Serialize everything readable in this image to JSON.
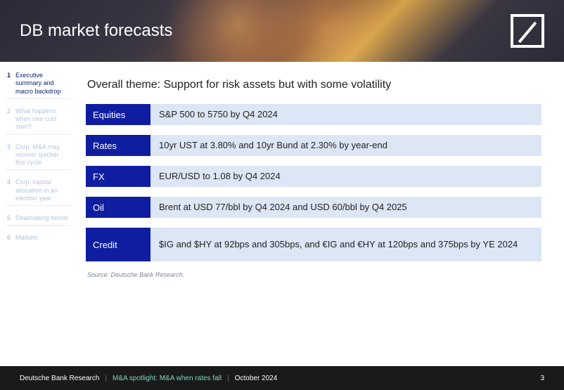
{
  "header": {
    "title": "DB market forecasts",
    "logo_color": "#ffffff"
  },
  "sidebar": {
    "items": [
      {
        "num": "1",
        "label": "Executive summary and macro backdrop",
        "active": true
      },
      {
        "num": "2",
        "label": "What happens when rate cuts start?",
        "active": false
      },
      {
        "num": "3",
        "label": "Corp. M&A may recover quicker this cycle",
        "active": false
      },
      {
        "num": "4",
        "label": "Corp. capital allocation in an election year",
        "active": false
      },
      {
        "num": "5",
        "label": "Dealmaking trends",
        "active": false
      },
      {
        "num": "6",
        "label": "Markets",
        "active": false
      }
    ]
  },
  "content": {
    "theme": "Overall theme: Support for risk assets but with some volatility",
    "rows": [
      {
        "category": "Equities",
        "description": "S&P 500 to 5750 by Q4 2024"
      },
      {
        "category": "Rates",
        "description": "10yr UST at 3.80% and 10yr Bund at 2.30% by year-end"
      },
      {
        "category": "FX",
        "description": "EUR/USD to 1.08 by Q4 2024"
      },
      {
        "category": "Oil",
        "description": "Brent at USD 77/bbl by Q4 2024 and USD 60/bbl by Q4 2025"
      },
      {
        "category": "Credit",
        "description": "$IG and $HY at 92bps and 305bps, and €IG and €HY at 120bps and 375bps by YE 2024",
        "tall": true
      }
    ],
    "source": "Source: Deutsche Bank Research."
  },
  "footer": {
    "org": "Deutsche Bank Research",
    "highlight": "M&A spotlight: M&A when rates fall",
    "date": "October 2024",
    "page": "3"
  },
  "colors": {
    "category_bg": "#0f1ea0",
    "description_bg": "#dce6f4",
    "footer_bg": "#1a1a1a",
    "highlight_text": "#7fd6c2",
    "nav_active": "#0a1e6e",
    "nav_inactive": "#b4c6dc"
  }
}
